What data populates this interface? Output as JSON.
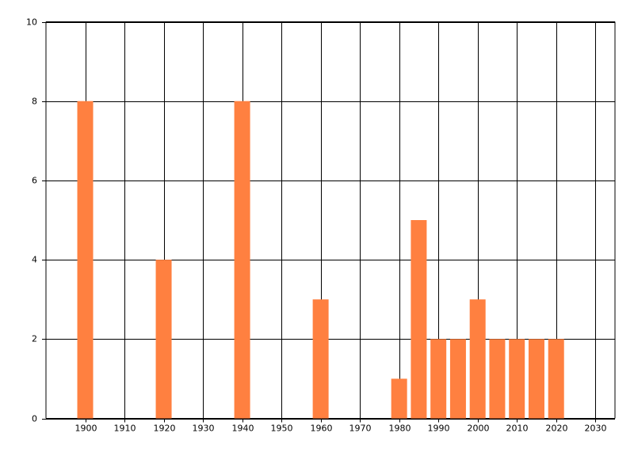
{
  "chart_data": {
    "type": "bar",
    "x": [
      1900,
      1920,
      1940,
      1960,
      1980,
      1985,
      1990,
      1995,
      2000,
      2005,
      2010,
      2015,
      2020
    ],
    "values": [
      8,
      4,
      8,
      3,
      1,
      5,
      2,
      2,
      3,
      2,
      2,
      2,
      2
    ],
    "color": "#ff8040",
    "xlim": [
      1890,
      2035
    ],
    "xticks": [
      1900,
      1910,
      1920,
      1930,
      1940,
      1950,
      1960,
      1970,
      1980,
      1990,
      2000,
      2010,
      2020,
      2030
    ],
    "ylim": [
      0,
      10
    ],
    "yticks": [
      0,
      2,
      4,
      6,
      8,
      10
    ],
    "grid": true
  }
}
